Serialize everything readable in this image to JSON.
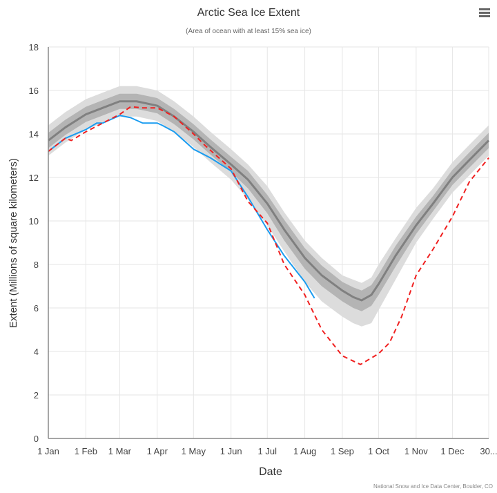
{
  "chart_data": {
    "type": "line",
    "title": "Arctic Sea Ice Extent",
    "subtitle": "(Area of ocean with at least 15% sea ice)",
    "xlabel": "Date",
    "ylabel": "Extent (Millions of square kilometers)",
    "credit": "National Snow and Ice Data Center, Boulder, CO",
    "ylim": [
      0,
      18
    ],
    "yticks": [
      0,
      2,
      4,
      6,
      8,
      10,
      12,
      14,
      16,
      18
    ],
    "xticks": [
      {
        "date": "01-01",
        "label": "1 Jan"
      },
      {
        "date": "02-01",
        "label": "1 Feb"
      },
      {
        "date": "03-01",
        "label": "1 Mar"
      },
      {
        "date": "04-01",
        "label": "1 Apr"
      },
      {
        "date": "05-01",
        "label": "1 May"
      },
      {
        "date": "06-01",
        "label": "1 Jun"
      },
      {
        "date": "07-01",
        "label": "1 Jul"
      },
      {
        "date": "08-01",
        "label": "1 Aug"
      },
      {
        "date": "09-01",
        "label": "1 Sep"
      },
      {
        "date": "10-01",
        "label": "1 Oct"
      },
      {
        "date": "11-01",
        "label": "1 Nov"
      },
      {
        "date": "12-01",
        "label": "1 Dec"
      },
      {
        "date": "12-31",
        "label": "30..."
      }
    ],
    "grid": true,
    "legend": "none",
    "colors": {
      "median": "#808080",
      "iqr": "#b4b4b4",
      "idr": "#dcdcdc",
      "blue": "#1a9cf0",
      "red": "#f02020"
    },
    "median": {
      "dates": [
        "01-01",
        "01-15",
        "02-01",
        "02-15",
        "03-01",
        "03-15",
        "04-01",
        "04-15",
        "05-01",
        "05-15",
        "06-01",
        "06-15",
        "07-01",
        "07-15",
        "08-01",
        "08-15",
        "09-01",
        "09-10",
        "09-17",
        "09-25",
        "10-01",
        "10-15",
        "11-01",
        "11-15",
        "12-01",
        "12-15",
        "12-31"
      ],
      "values": [
        13.7,
        14.3,
        14.9,
        15.2,
        15.5,
        15.5,
        15.3,
        14.8,
        14.1,
        13.4,
        12.6,
        11.9,
        10.8,
        9.6,
        8.3,
        7.5,
        6.8,
        6.5,
        6.35,
        6.6,
        7.1,
        8.4,
        9.8,
        10.8,
        12.0,
        12.8,
        13.7
      ],
      "iqr_low": [
        13.35,
        13.95,
        14.55,
        14.85,
        15.15,
        15.15,
        14.95,
        14.45,
        13.75,
        13.05,
        12.25,
        11.5,
        10.35,
        9.1,
        7.8,
        7.0,
        6.3,
        6.0,
        5.85,
        6.1,
        6.6,
        7.9,
        9.4,
        10.45,
        11.65,
        12.45,
        13.35
      ],
      "iqr_high": [
        14.05,
        14.65,
        15.25,
        15.55,
        15.85,
        15.85,
        15.65,
        15.15,
        14.45,
        13.75,
        12.95,
        12.3,
        11.2,
        10.05,
        8.75,
        7.95,
        7.2,
        6.95,
        6.8,
        7.05,
        7.55,
        8.85,
        10.2,
        11.15,
        12.35,
        13.15,
        14.05
      ],
      "idr_low": [
        13.0,
        13.6,
        14.2,
        14.5,
        14.8,
        14.8,
        14.6,
        14.1,
        13.4,
        12.7,
        11.9,
        11.0,
        9.8,
        8.6,
        7.2,
        6.3,
        5.6,
        5.3,
        5.15,
        5.3,
        5.9,
        7.3,
        9.0,
        10.1,
        11.3,
        12.1,
        13.0
      ],
      "idr_high": [
        14.4,
        15.0,
        15.6,
        15.9,
        16.2,
        16.2,
        16.0,
        15.5,
        14.8,
        14.1,
        13.3,
        12.6,
        11.6,
        10.4,
        9.1,
        8.3,
        7.5,
        7.3,
        7.15,
        7.4,
        8.0,
        9.2,
        10.6,
        11.5,
        12.7,
        13.5,
        14.4
      ]
    },
    "series": [
      {
        "color": "blue",
        "style": "solid",
        "dates": [
          "01-01",
          "01-15",
          "02-01",
          "02-10",
          "02-15",
          "03-01",
          "03-10",
          "03-20",
          "04-01",
          "04-05",
          "04-15",
          "05-01",
          "05-15",
          "06-01",
          "06-15",
          "07-01",
          "07-15",
          "08-01",
          "08-09"
        ],
        "values": [
          13.2,
          13.8,
          14.2,
          14.5,
          14.5,
          14.85,
          14.75,
          14.5,
          14.5,
          14.4,
          14.1,
          13.3,
          12.9,
          12.3,
          11.1,
          9.6,
          8.4,
          7.2,
          6.45
        ]
      },
      {
        "color": "red",
        "style": "dashed",
        "dates": [
          "01-01",
          "01-15",
          "01-20",
          "02-01",
          "02-15",
          "03-01",
          "03-10",
          "03-20",
          "04-01",
          "04-15",
          "05-01",
          "05-10",
          "06-01",
          "06-15",
          "07-01",
          "07-15",
          "08-01",
          "08-15",
          "09-01",
          "09-16",
          "10-01",
          "10-10",
          "10-20",
          "11-01",
          "11-15",
          "12-01",
          "12-15",
          "12-31"
        ],
        "values": [
          13.2,
          13.8,
          13.7,
          14.1,
          14.5,
          14.9,
          15.25,
          15.2,
          15.2,
          14.8,
          14.0,
          13.5,
          12.4,
          10.9,
          9.9,
          8.0,
          6.6,
          5.0,
          3.8,
          3.4,
          3.9,
          4.4,
          5.6,
          7.5,
          8.7,
          10.2,
          11.8,
          12.9
        ]
      }
    ]
  },
  "menu_icon": "hamburger-menu-icon"
}
